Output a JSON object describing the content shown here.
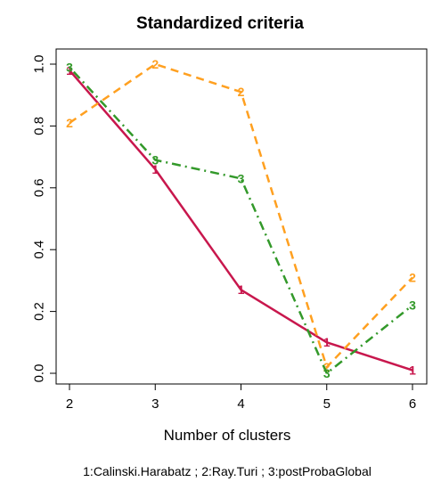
{
  "chart_data": {
    "type": "line",
    "title": "Standardized criteria",
    "xlabel": "Number of clusters",
    "ylabel": "",
    "x": [
      2,
      3,
      4,
      5,
      6
    ],
    "xlim": [
      2,
      6
    ],
    "ylim": [
      0,
      1
    ],
    "x_ticks": [
      "2",
      "3",
      "4",
      "5",
      "6"
    ],
    "y_ticks": [
      "0.0",
      "0.2",
      "0.4",
      "0.6",
      "0.8",
      "1.0"
    ],
    "grid": false,
    "series": [
      {
        "name": "Calinski.Harabatz",
        "marker": "1",
        "color": "#c8174d",
        "dash": "solid",
        "values": [
          0.98,
          0.66,
          0.27,
          0.1,
          0.01
        ]
      },
      {
        "name": "Ray.Turi",
        "marker": "2",
        "color": "#ffa020",
        "dash": "dashed",
        "values": [
          0.81,
          1.0,
          0.91,
          0.02,
          0.31
        ]
      },
      {
        "name": "postProbaGlobal",
        "marker": "3",
        "color": "#33992a",
        "dash": "dotdash",
        "values": [
          0.99,
          0.69,
          0.63,
          0.0,
          0.22
        ]
      }
    ],
    "legend_text": "1:Calinski.Harabatz ; 2:Ray.Turi ; 3:postProbaGlobal"
  }
}
